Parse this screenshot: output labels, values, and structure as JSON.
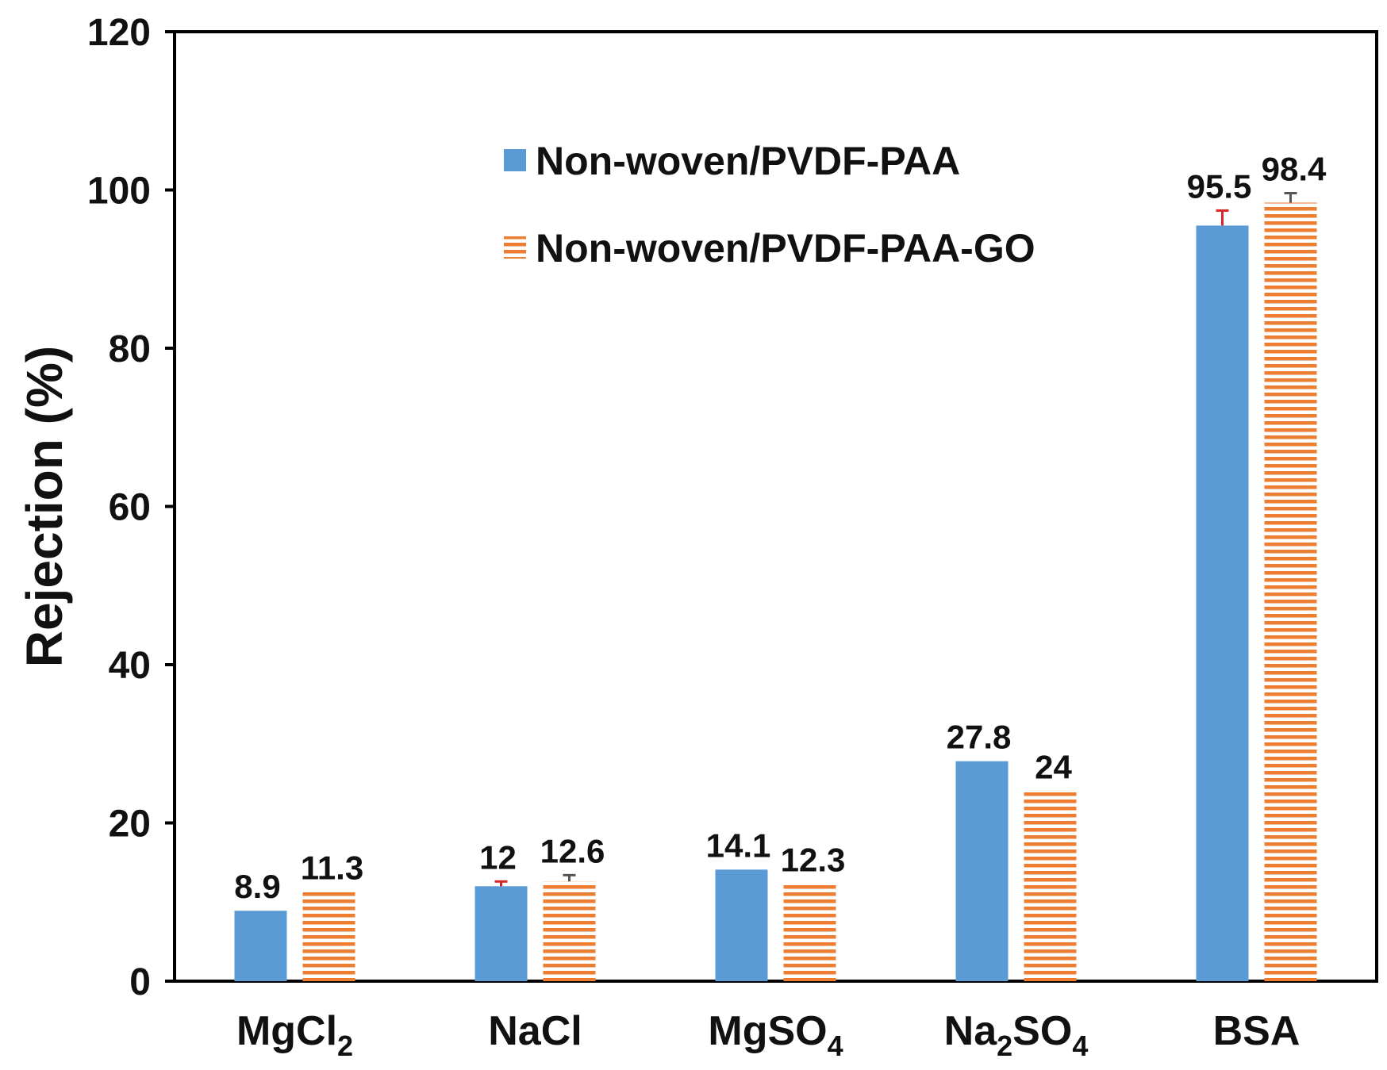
{
  "chart_data": {
    "type": "bar",
    "title": "",
    "xlabel": "",
    "ylabel": "Rejection (%)",
    "ylim": [
      0,
      120
    ],
    "yticks": [
      0,
      20,
      40,
      60,
      80,
      100,
      120
    ],
    "grid": false,
    "legend_position": "top-center",
    "categories": [
      {
        "base": "MgCl",
        "parts": [
          {
            "t": "MgCl",
            "sub": false
          },
          {
            "t": "2",
            "sub": true
          }
        ]
      },
      {
        "base": "NaCl",
        "parts": [
          {
            "t": "NaCl",
            "sub": false
          }
        ]
      },
      {
        "base": "MgSO",
        "parts": [
          {
            "t": "MgSO",
            "sub": false
          },
          {
            "t": "4",
            "sub": true
          }
        ]
      },
      {
        "base": "Na2SO4",
        "parts": [
          {
            "t": "Na",
            "sub": false
          },
          {
            "t": "2",
            "sub": true
          },
          {
            "t": "SO",
            "sub": false
          },
          {
            "t": "4",
            "sub": true
          }
        ]
      },
      {
        "base": "BSA",
        "parts": [
          {
            "t": "BSA",
            "sub": false
          }
        ]
      }
    ],
    "series": [
      {
        "name": "Non-woven/PVDF-PAA",
        "pattern": "solid",
        "color": "#5b9bd5",
        "values": [
          8.9,
          12,
          14.1,
          27.8,
          95.5
        ],
        "labels": [
          "8.9",
          "12",
          "14.1",
          "27.8",
          "95.5"
        ],
        "errors": [
          0,
          0.6,
          0,
          0,
          1.9
        ],
        "error_color": "#d62728"
      },
      {
        "name": "Non-woven/PVDF-PAA-GO",
        "pattern": "horizontal-stripes",
        "color": "#ed7d31",
        "values": [
          11.3,
          12.6,
          12.3,
          24,
          98.4
        ],
        "labels": [
          "11.3",
          "12.6",
          "12.3",
          "24",
          "98.4"
        ],
        "errors": [
          0,
          0.8,
          0,
          0,
          1.2
        ],
        "error_color": "#555555"
      }
    ]
  }
}
